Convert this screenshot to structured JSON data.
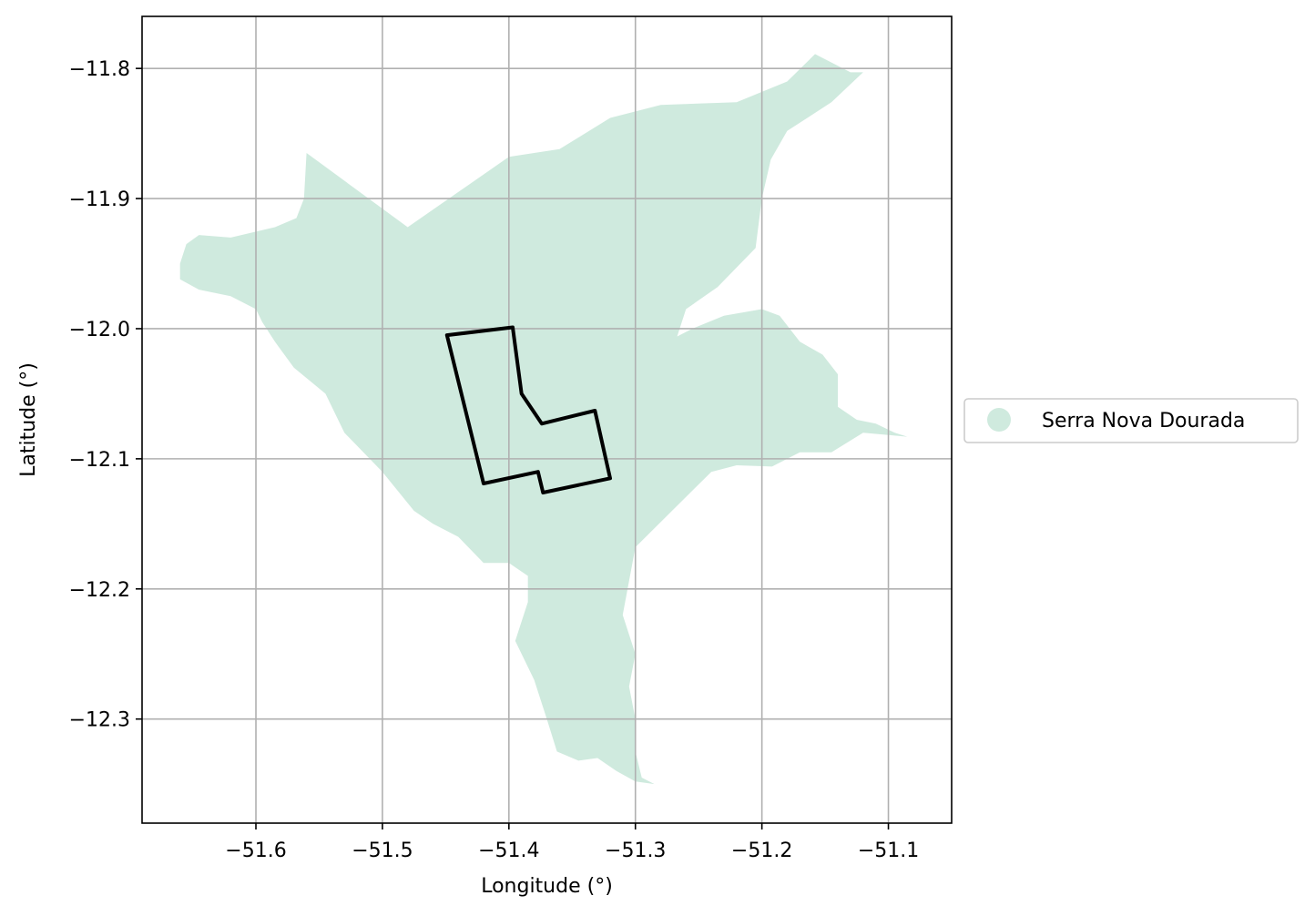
{
  "chart_data": {
    "type": "map",
    "xlabel": "Longitude (°)",
    "ylabel": "Latitude (°)",
    "xlim": [
      -51.69,
      -51.05
    ],
    "ylim": [
      -12.38,
      -11.76
    ],
    "x_ticks": [
      -51.6,
      -51.5,
      -51.4,
      -51.3,
      -51.2,
      -51.1
    ],
    "x_tick_labels": [
      "−51.6",
      "−51.5",
      "−51.4",
      "−51.3",
      "−51.2",
      "−51.1"
    ],
    "y_ticks": [
      -11.8,
      -11.9,
      -12.0,
      -12.1,
      -12.2,
      -12.3
    ],
    "y_tick_labels": [
      "−11.8",
      "−11.9",
      "−12.0",
      "−12.1",
      "−12.2",
      "−12.3"
    ],
    "grid": true,
    "legend_position": "right",
    "legend": [
      {
        "label": "Serra Nova Dourada",
        "color": "#cfeade",
        "marker": "circle"
      }
    ],
    "region": {
      "name": "Serra Nova Dourada",
      "fill": "#cfeade",
      "outline_lonlat": [
        [
          -51.56,
          -11.865
        ],
        [
          -51.48,
          -11.922
        ],
        [
          -51.4,
          -11.868
        ],
        [
          -51.36,
          -11.862
        ],
        [
          -51.32,
          -11.838
        ],
        [
          -51.28,
          -11.828
        ],
        [
          -51.22,
          -11.826
        ],
        [
          -51.18,
          -11.81
        ],
        [
          -51.158,
          -11.789
        ],
        [
          -51.13,
          -11.803
        ],
        [
          -51.12,
          -11.803
        ],
        [
          -51.145,
          -11.826
        ],
        [
          -51.18,
          -11.848
        ],
        [
          -51.193,
          -11.87
        ],
        [
          -51.2,
          -11.9
        ],
        [
          -51.205,
          -11.938
        ],
        [
          -51.235,
          -11.968
        ],
        [
          -51.26,
          -11.985
        ],
        [
          -51.27,
          -12.015
        ],
        [
          -51.285,
          -12.015
        ],
        [
          -51.255,
          -12.0
        ],
        [
          -51.23,
          -11.99
        ],
        [
          -51.2,
          -11.985
        ],
        [
          -51.186,
          -11.99
        ],
        [
          -51.17,
          -12.01
        ],
        [
          -51.152,
          -12.02
        ],
        [
          -51.14,
          -12.035
        ],
        [
          -51.14,
          -12.06
        ],
        [
          -51.125,
          -12.07
        ],
        [
          -51.11,
          -12.073
        ],
        [
          -51.095,
          -12.08
        ],
        [
          -51.085,
          -12.083
        ],
        [
          -51.12,
          -12.08
        ],
        [
          -51.145,
          -12.095
        ],
        [
          -51.17,
          -12.095
        ],
        [
          -51.192,
          -12.106
        ],
        [
          -51.22,
          -12.105
        ],
        [
          -51.24,
          -12.11
        ],
        [
          -51.3,
          -12.168
        ],
        [
          -51.31,
          -12.22
        ],
        [
          -51.3,
          -12.25
        ],
        [
          -51.305,
          -12.275
        ],
        [
          -51.3,
          -12.3
        ],
        [
          -51.3,
          -12.325
        ],
        [
          -51.295,
          -12.345
        ],
        [
          -51.285,
          -12.35
        ],
        [
          -51.3,
          -12.348
        ],
        [
          -51.315,
          -12.34
        ],
        [
          -51.33,
          -12.33
        ],
        [
          -51.345,
          -12.332
        ],
        [
          -51.362,
          -12.325
        ],
        [
          -51.37,
          -12.3
        ],
        [
          -51.38,
          -12.27
        ],
        [
          -51.395,
          -12.24
        ],
        [
          -51.385,
          -12.21
        ],
        [
          -51.385,
          -12.19
        ],
        [
          -51.4,
          -12.18
        ],
        [
          -51.42,
          -12.18
        ],
        [
          -51.44,
          -12.16
        ],
        [
          -51.46,
          -12.15
        ],
        [
          -51.475,
          -12.14
        ],
        [
          -51.5,
          -12.11
        ],
        [
          -51.53,
          -12.08
        ],
        [
          -51.545,
          -12.05
        ],
        [
          -51.57,
          -12.03
        ],
        [
          -51.585,
          -12.01
        ],
        [
          -51.595,
          -11.995
        ],
        [
          -51.6,
          -11.985
        ],
        [
          -51.62,
          -11.975
        ],
        [
          -51.645,
          -11.97
        ],
        [
          -51.66,
          -11.962
        ],
        [
          -51.66,
          -11.95
        ],
        [
          -51.655,
          -11.935
        ],
        [
          -51.645,
          -11.928
        ],
        [
          -51.62,
          -11.93
        ],
        [
          -51.585,
          -11.922
        ],
        [
          -51.568,
          -11.915
        ],
        [
          -51.562,
          -11.9
        ]
      ],
      "selection_outline_lonlat": [
        [
          -51.449,
          -12.005
        ],
        [
          -51.397,
          -11.999
        ],
        [
          -51.39,
          -12.05
        ],
        [
          -51.374,
          -12.073
        ],
        [
          -51.332,
          -12.063
        ],
        [
          -51.32,
          -12.115
        ],
        [
          -51.373,
          -12.126
        ],
        [
          -51.377,
          -12.11
        ],
        [
          -51.42,
          -12.119
        ]
      ],
      "selection_outline_color": "#000000"
    }
  }
}
